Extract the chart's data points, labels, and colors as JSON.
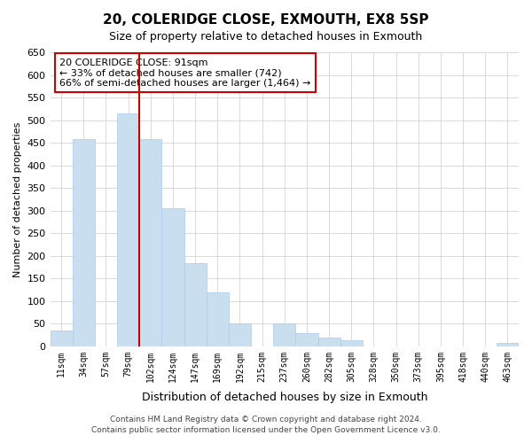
{
  "title": "20, COLERIDGE CLOSE, EXMOUTH, EX8 5SP",
  "subtitle": "Size of property relative to detached houses in Exmouth",
  "xlabel": "Distribution of detached houses by size in Exmouth",
  "ylabel": "Number of detached properties",
  "bin_labels": [
    "11sqm",
    "34sqm",
    "57sqm",
    "79sqm",
    "102sqm",
    "124sqm",
    "147sqm",
    "169sqm",
    "192sqm",
    "215sqm",
    "237sqm",
    "260sqm",
    "282sqm",
    "305sqm",
    "328sqm",
    "350sqm",
    "373sqm",
    "395sqm",
    "418sqm",
    "440sqm",
    "463sqm"
  ],
  "bar_values": [
    35,
    458,
    0,
    515,
    458,
    305,
    183,
    120,
    50,
    0,
    50,
    28,
    20,
    13,
    0,
    0,
    0,
    0,
    0,
    0,
    8
  ],
  "bar_color": "#c9dff0",
  "bar_edge_color": "#aacce8",
  "vline_x": 4.0,
  "vline_color": "#cc0000",
  "ylim": [
    0,
    650
  ],
  "yticks": [
    0,
    50,
    100,
    150,
    200,
    250,
    300,
    350,
    400,
    450,
    500,
    550,
    600,
    650
  ],
  "annotation_title": "20 COLERIDGE CLOSE: 91sqm",
  "annotation_line1": "← 33% of detached houses are smaller (742)",
  "annotation_line2": "66% of semi-detached houses are larger (1,464) →",
  "annotation_box_color": "#ffffff",
  "annotation_box_edge": "#cc0000",
  "footer_line1": "Contains HM Land Registry data © Crown copyright and database right 2024.",
  "footer_line2": "Contains public sector information licensed under the Open Government Licence v3.0."
}
